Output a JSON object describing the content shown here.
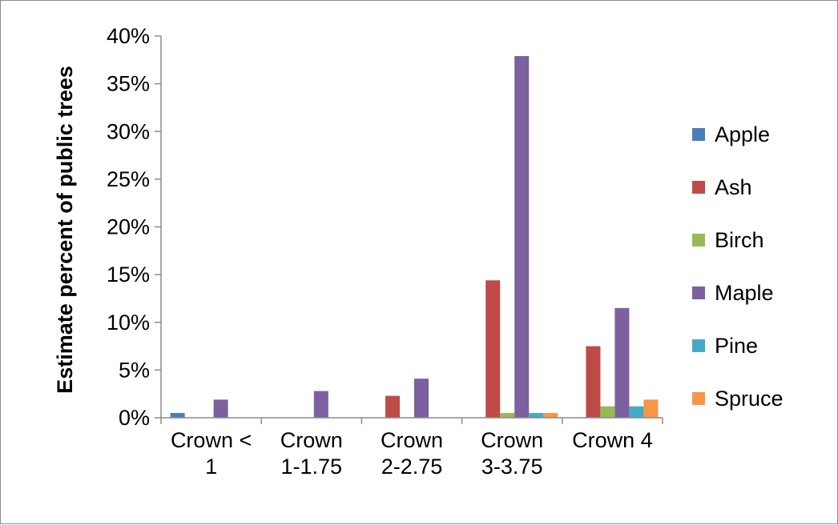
{
  "chart_data": {
    "type": "bar",
    "title": "",
    "xlabel": "",
    "ylabel": "Estimate percent of public trees",
    "ylim": [
      0,
      40
    ],
    "ytick_step": 5,
    "ytick_format": "percent",
    "grid": false,
    "legend_position": "right",
    "categories": [
      [
        "Crown <",
        "1"
      ],
      [
        "Crown",
        "1-1.75"
      ],
      [
        "Crown",
        "2-2.75"
      ],
      [
        "Crown",
        "3-3.75"
      ],
      [
        "Crown 4"
      ]
    ],
    "series": [
      {
        "name": "Apple",
        "color": "#4a7ebb",
        "values": [
          0.5,
          0,
          0,
          0,
          0
        ]
      },
      {
        "name": "Ash",
        "color": "#be4b48",
        "values": [
          0,
          0,
          2.3,
          14.4,
          7.5
        ]
      },
      {
        "name": "Birch",
        "color": "#98b954",
        "values": [
          0,
          0,
          0,
          0.5,
          1.2
        ]
      },
      {
        "name": "Maple",
        "color": "#7d60a0",
        "values": [
          1.9,
          2.8,
          4.1,
          37.9,
          11.5
        ]
      },
      {
        "name": "Pine",
        "color": "#46aac5",
        "values": [
          0,
          0,
          0,
          0.5,
          1.2
        ]
      },
      {
        "name": "Spruce",
        "color": "#f79646",
        "values": [
          0,
          0,
          0,
          0.5,
          1.9
        ]
      }
    ]
  }
}
